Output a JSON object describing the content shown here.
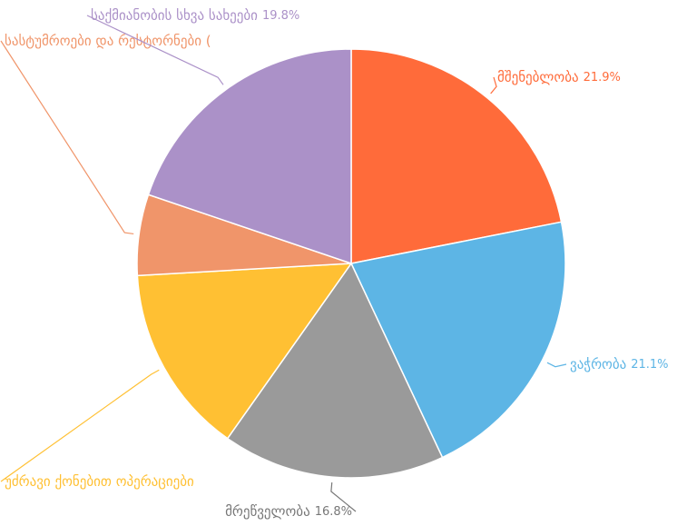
{
  "chart_data": {
    "type": "pie",
    "categories": [
      "მშენებლობა",
      "ვაჭრობა",
      "მრეწველობა",
      "უძრავი ქონებით ოპერაციები",
      "სასტუმროები და რესტორნები (",
      "საქმიანობის სხვა სახეები"
    ],
    "values": [
      21.9,
      21.1,
      16.8,
      14.3,
      6.1,
      19.8
    ],
    "value_labels": [
      "21.9%",
      "21.1%",
      "16.8%",
      null,
      null,
      "19.8%"
    ],
    "colors": [
      "#ff6b3a",
      "#5db5e5",
      "#9a9a9a",
      "#ffc033",
      "#f0956a",
      "#ab91c8"
    ],
    "label_colors": [
      "#ff6b3a",
      "#5db5e5",
      "#777777",
      "#ffc033",
      "#f0956a",
      "#ab91c8"
    ]
  }
}
